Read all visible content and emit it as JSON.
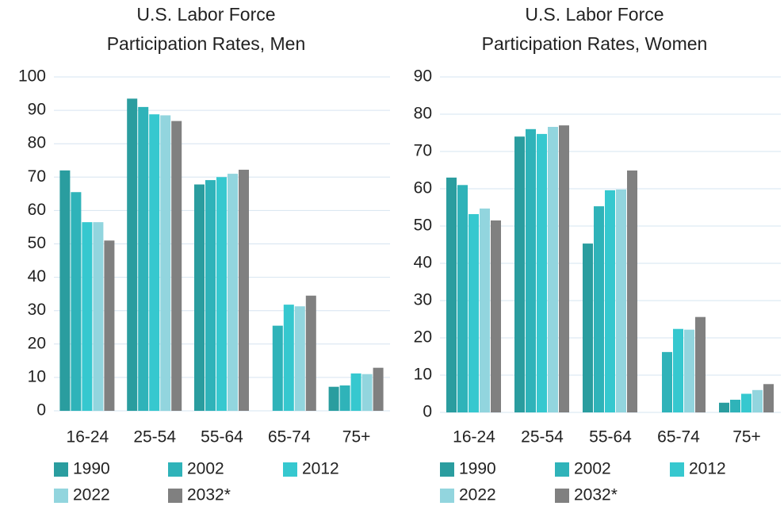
{
  "chart_data": [
    {
      "type": "bar",
      "title": [
        "U.S. Labor Force",
        "Participation Rates, Men"
      ],
      "categories": [
        "16-24",
        "25-54",
        "55-64",
        "65-74",
        "75+"
      ],
      "series": [
        {
          "name": "1990",
          "color": "#2a9d9f",
          "values": [
            72,
            93.5,
            67.8,
            null,
            7.2
          ]
        },
        {
          "name": "2002",
          "color": "#2fb3b9",
          "values": [
            65.5,
            91,
            69.1,
            25.5,
            7.6
          ]
        },
        {
          "name": "2012",
          "color": "#36c8cf",
          "values": [
            56.5,
            88.8,
            70,
            31.8,
            11.2
          ]
        },
        {
          "name": "2022",
          "color": "#92d5de",
          "values": [
            56.5,
            88.5,
            71,
            31.3,
            11
          ]
        },
        {
          "name": "2032*",
          "color": "#808080",
          "values": [
            51,
            86.8,
            72.2,
            34.5,
            12.9
          ]
        }
      ],
      "ylim": [
        0,
        100
      ],
      "yticks": [
        0,
        10,
        20,
        30,
        40,
        50,
        60,
        70,
        80,
        90,
        100
      ],
      "grid": true
    },
    {
      "type": "bar",
      "title": [
        "U.S. Labor Force",
        "Participation Rates, Women"
      ],
      "categories": [
        "16-24",
        "25-54",
        "55-64",
        "65-74",
        "75+"
      ],
      "series": [
        {
          "name": "1990",
          "color": "#2a9d9f",
          "values": [
            63,
            74,
            45.3,
            null,
            2.6
          ]
        },
        {
          "name": "2002",
          "color": "#2fb3b9",
          "values": [
            61,
            76,
            55.3,
            16.2,
            3.4
          ]
        },
        {
          "name": "2012",
          "color": "#36c8cf",
          "values": [
            53.2,
            74.7,
            59.6,
            22.4,
            5
          ]
        },
        {
          "name": "2022",
          "color": "#92d5de",
          "values": [
            54.7,
            76.6,
            59.8,
            22.2,
            6
          ]
        },
        {
          "name": "2032*",
          "color": "#808080",
          "values": [
            51.5,
            77,
            64.9,
            25.6,
            7.6
          ]
        }
      ],
      "ylim": [
        0,
        90
      ],
      "yticks": [
        0,
        10,
        20,
        30,
        40,
        50,
        60,
        70,
        80,
        90
      ],
      "grid": true
    }
  ]
}
